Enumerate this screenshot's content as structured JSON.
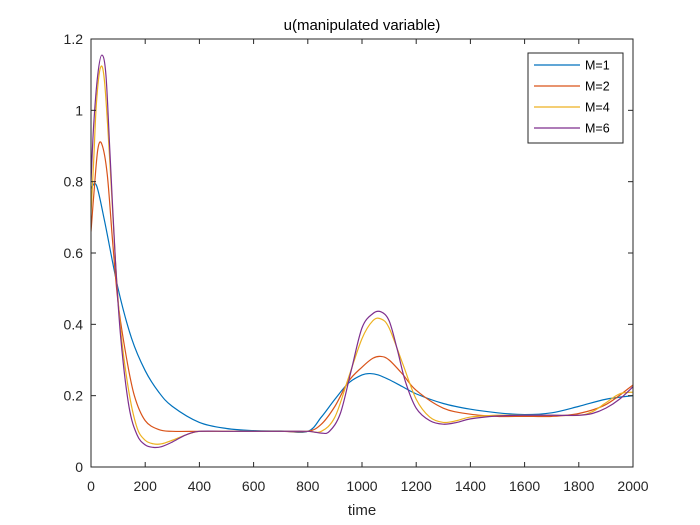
{
  "chart_data": {
    "type": "line",
    "title": "u(manipulated variable)",
    "xlabel": "time",
    "ylabel": "",
    "xlim": [
      0,
      2000
    ],
    "ylim": [
      0,
      1.2
    ],
    "xticks": [
      0,
      200,
      400,
      600,
      800,
      1000,
      1200,
      1400,
      1600,
      1800,
      2000
    ],
    "yticks": [
      0,
      0.2,
      0.4,
      0.6,
      0.8,
      1,
      1.2
    ],
    "xtick_labels": [
      "0",
      "200",
      "400",
      "600",
      "800",
      "1000",
      "1200",
      "1400",
      "1600",
      "1800",
      "2000"
    ],
    "ytick_labels": [
      "0",
      "0.2",
      "0.4",
      "0.6",
      "0.8",
      "1",
      "1.2"
    ],
    "grid": false,
    "legend_position": "top-right",
    "series": [
      {
        "name": "M=1",
        "color": "#0072BD",
        "x": [
          0,
          20,
          50,
          100,
          150,
          200,
          250,
          300,
          400,
          500,
          600,
          700,
          800,
          850,
          900,
          950,
          1000,
          1030,
          1060,
          1100,
          1150,
          1200,
          1300,
          1400,
          1500,
          1600,
          1700,
          1800,
          1900,
          2000
        ],
        "y": [
          0.78,
          0.79,
          0.69,
          0.5,
          0.36,
          0.27,
          0.21,
          0.17,
          0.125,
          0.108,
          0.102,
          0.101,
          0.1,
          0.14,
          0.19,
          0.235,
          0.258,
          0.262,
          0.258,
          0.245,
          0.225,
          0.205,
          0.178,
          0.162,
          0.152,
          0.147,
          0.152,
          0.17,
          0.19,
          0.2
        ]
      },
      {
        "name": "M=2",
        "color": "#D95319",
        "x": [
          0,
          10,
          25,
          40,
          60,
          80,
          100,
          130,
          160,
          200,
          250,
          300,
          400,
          500,
          600,
          700,
          800,
          850,
          900,
          950,
          1000,
          1040,
          1070,
          1100,
          1150,
          1200,
          1300,
          1400,
          1500,
          1600,
          1700,
          1800,
          1900,
          2000
        ],
        "y": [
          0.66,
          0.76,
          0.89,
          0.905,
          0.82,
          0.63,
          0.46,
          0.31,
          0.2,
          0.13,
          0.105,
          0.1,
          0.1,
          0.1,
          0.1,
          0.1,
          0.1,
          0.12,
          0.17,
          0.24,
          0.28,
          0.305,
          0.31,
          0.3,
          0.26,
          0.215,
          0.165,
          0.148,
          0.142,
          0.142,
          0.142,
          0.15,
          0.175,
          0.23
        ]
      },
      {
        "name": "M=4",
        "color": "#EDB120",
        "x": [
          0,
          10,
          20,
          35,
          50,
          70,
          90,
          110,
          140,
          170,
          200,
          230,
          260,
          300,
          350,
          400,
          500,
          600,
          700,
          800,
          850,
          900,
          950,
          1000,
          1040,
          1070,
          1100,
          1150,
          1200,
          1250,
          1300,
          1350,
          1400,
          1500,
          1600,
          1700,
          1800,
          1850,
          1900,
          1950,
          2000
        ],
        "y": [
          0.71,
          0.86,
          1.02,
          1.12,
          1.08,
          0.85,
          0.58,
          0.38,
          0.21,
          0.11,
          0.075,
          0.065,
          0.065,
          0.075,
          0.09,
          0.1,
          0.1,
          0.1,
          0.1,
          0.1,
          0.1,
          0.14,
          0.25,
          0.36,
          0.41,
          0.415,
          0.39,
          0.29,
          0.19,
          0.14,
          0.125,
          0.13,
          0.14,
          0.145,
          0.145,
          0.145,
          0.145,
          0.155,
          0.18,
          0.205,
          0.21
        ]
      },
      {
        "name": "M=6",
        "color": "#7E2F8E",
        "x": [
          0,
          10,
          25,
          40,
          55,
          70,
          90,
          110,
          140,
          170,
          200,
          230,
          260,
          300,
          350,
          400,
          500,
          600,
          700,
          800,
          850,
          880,
          920,
          960,
          1000,
          1040,
          1070,
          1100,
          1130,
          1160,
          1200,
          1250,
          1300,
          1350,
          1400,
          1500,
          1600,
          1700,
          1800,
          1850,
          1900,
          1950,
          2000
        ],
        "y": [
          0.8,
          0.96,
          1.1,
          1.155,
          1.1,
          0.88,
          0.58,
          0.36,
          0.17,
          0.09,
          0.062,
          0.055,
          0.057,
          0.07,
          0.09,
          0.1,
          0.1,
          0.1,
          0.1,
          0.1,
          0.095,
          0.1,
          0.15,
          0.27,
          0.39,
          0.43,
          0.435,
          0.41,
          0.33,
          0.24,
          0.165,
          0.13,
          0.12,
          0.125,
          0.135,
          0.143,
          0.145,
          0.145,
          0.145,
          0.15,
          0.165,
          0.19,
          0.225
        ]
      }
    ]
  }
}
